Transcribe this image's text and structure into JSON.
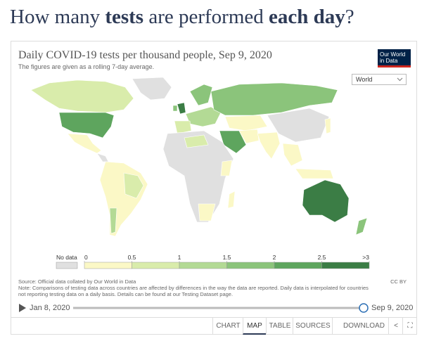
{
  "headline": {
    "parts": [
      "How many ",
      "tests",
      " are performed ",
      "each day",
      "?"
    ]
  },
  "card": {
    "title": "Daily COVID-19 tests per thousand people, Sep 9, 2020",
    "subtitle": "The figures are given as a rolling 7-day average.",
    "logo": [
      "Our World",
      "in Data"
    ],
    "region": "World"
  },
  "legend": {
    "no_data": "No data",
    "no_data_color": "#e0e0e0",
    "labels": [
      "0",
      "0.5",
      "1",
      "1.5",
      "2",
      "2.5",
      ">3"
    ],
    "colors": [
      "#fbf8c6",
      "#d9ecab",
      "#b3da95",
      "#8bc47b",
      "#5ea55e",
      "#3b7d45"
    ]
  },
  "footer": {
    "source": "Source: Official data collated by Our World in Data",
    "license": "CC BY",
    "note": [
      "Note: Comparisons of testing data across countries are affected by differences in the way the data are reported. Daily data is interpolated for countries",
      "not reporting testing data on a daily basis. Details can be found at our Testing Dataset page."
    ]
  },
  "timeline": {
    "start": "Jan 8, 2020",
    "end": "Sep 9, 2020"
  },
  "tabs": [
    "CHART",
    "MAP",
    "TABLE",
    "SOURCES",
    "DOWNLOAD"
  ]
}
